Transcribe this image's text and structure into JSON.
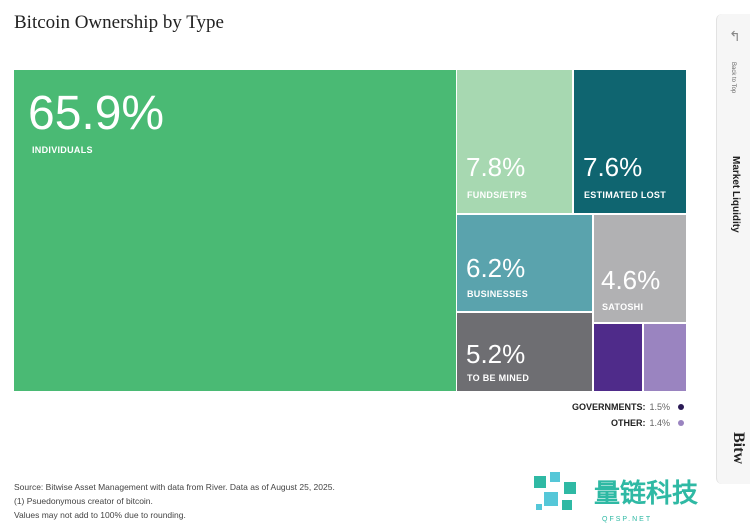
{
  "chart_data": {
    "type": "treemap",
    "title": "Bitcoin Ownership by Type",
    "segments": [
      {
        "key": "individuals",
        "value": "65.9%",
        "label": "INDIVIDUALS",
        "color": "#4aba74"
      },
      {
        "key": "funds",
        "value": "7.8%",
        "label": "FUNDS/ETPS",
        "color": "#a7d8b1"
      },
      {
        "key": "lost",
        "value": "7.6%",
        "label": "ESTIMATED LOST",
        "color": "#0f6570"
      },
      {
        "key": "businesses",
        "value": "6.2%",
        "label": "BUSINESSES",
        "color": "#5aa3ad"
      },
      {
        "key": "satoshi",
        "value": "4.6%",
        "label": "SATOSHI",
        "color": "#b1b1b3"
      },
      {
        "key": "mined",
        "value": "5.2%",
        "label": "TO BE MINED",
        "color": "#6e6e72"
      },
      {
        "key": "governments",
        "value": "1.5%",
        "label": "GOVERNMENTS:",
        "color": "#4f2b8a"
      },
      {
        "key": "other",
        "value": "1.4%",
        "label": "OTHER:",
        "color": "#9a84c0"
      }
    ]
  },
  "notes": [
    "Source: Bitwise Asset Management with data from River. Data as of August 25, 2025.",
    "(1) Psuedonymous creator of bitcoin.",
    "Values may not add to 100% due to rounding."
  ],
  "sidebar": {
    "back_label": "Back to Top",
    "section_label": "Market Liquidity",
    "brand": "Bitw"
  },
  "watermark": {
    "text": "量链科技",
    "sub": "QFSP.NET",
    "color": "#2fb9a4"
  }
}
